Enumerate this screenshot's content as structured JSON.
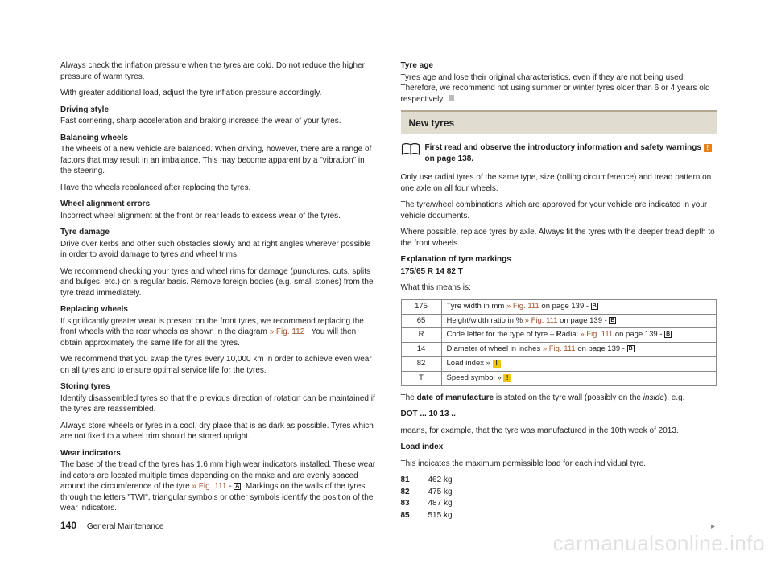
{
  "left": {
    "p1": "Always check the inflation pressure when the tyres are cold. Do not reduce the higher pressure of warm tyres.",
    "p2": "With greater additional load, adjust the tyre inflation pressure accordingly.",
    "h1": "Driving style",
    "p3": "Fast cornering, sharp acceleration and braking increase the wear of your tyres.",
    "h2": "Balancing wheels",
    "p4": "The wheels of a new vehicle are balanced. When driving, however, there are a range of factors that may result in an imbalance. This may become apparent by a \"vibration\" in the steering.",
    "p5": "Have the wheels rebalanced after replacing the tyres.",
    "h3": "Wheel alignment errors",
    "p6": "Incorrect wheel alignment at the front or rear leads to excess wear of the tyres.",
    "h4": "Tyre damage",
    "p7": "Drive over kerbs and other such obstacles slowly and at right angles wherever possible in order to avoid damage to tyres and wheel trims.",
    "p8": "We recommend checking your tyres and wheel rims for damage (punctures, cuts, splits and bulges, etc.) on a regular basis. Remove foreign bodies (e.g. small stones) from the tyre tread immediately.",
    "h5": "Replacing wheels",
    "p9a": "If significantly greater wear is present on the front tyres, we recommend replacing the front wheels with the rear wheels as shown in the diagram ",
    "p9link": "» Fig. 112",
    "p9b": " . You will then obtain approximately the same life for all the tyres.",
    "p10": "We recommend that you swap the tyres every 10,000 km in order to achieve even wear on all tyres and to ensure optimal service life for the tyres.",
    "h6": "Storing tyres",
    "p11": "Identify disassembled tyres so that the previous direction of rotation can be maintained if the tyres are reassembled.",
    "p12": "Always store wheels or tyres in a cool, dry place that is as dark as possible. Tyres which are not fixed to a wheel trim should be stored upright.",
    "h7": "Wear indicators",
    "p13a": "The base of the tread of the tyres has 1.6 mm high wear indicators installed. These wear indicators are located multiple times depending on the make and are evenly spaced around the circumference of the tyre ",
    "p13link": "» Fig. 111",
    "p13b": " - ",
    "p13box": "A",
    "p13c": ". Markings on the walls of the tyres through the letters \"TWI\", triangular symbols or other symbols identify the position of the wear indicators."
  },
  "right": {
    "h1": "Tyre age",
    "p1": "Tyres age and lose their original characteristics, even if they are not being used. Therefore, we recommend not using summer or winter tyres older than 6 or 4 years old respectively.",
    "section": "New tyres",
    "intro1": "First read and observe the introductory information and safety warnings ",
    "intro2": " on page 138.",
    "p2": "Only use radial tyres of the same type, size (rolling circumference) and tread pattern on one axle on all four wheels.",
    "p3": "The tyre/wheel combinations which are approved for your vehicle are indicated in your vehicle documents.",
    "p4": "Where possible, replace tyres by axle. Always fit the tyres with the deeper tread depth to the front wheels.",
    "h2": "Explanation of tyre markings",
    "h2b": "175/65 R 14 82 T",
    "p5": "What this means is:",
    "table": {
      "rows": [
        {
          "k": "175",
          "t": "Tyre width in mm ",
          "link": "» Fig. 111",
          "after": " on page 139 - ",
          "box": "B"
        },
        {
          "k": "65",
          "t": "Height/width ratio in % ",
          "link": "» Fig. 111",
          "after": " on page 139 - ",
          "box": "B"
        },
        {
          "k": "R",
          "t": "Code letter for the type of tyre – ",
          "bold": "R",
          "t2": "adial ",
          "link": "» Fig. 111",
          "after": " on page 139 - ",
          "box": "B"
        },
        {
          "k": "14",
          "t": "Diameter of wheel in inches ",
          "link": "» Fig. 111",
          "after": " on page 139 - ",
          "box": "B"
        },
        {
          "k": "82",
          "t": "Load index », ",
          "icon": "yellow"
        },
        {
          "k": "T",
          "t": "Speed symbol » ",
          "icon": "yellow"
        }
      ]
    },
    "p6a": "The ",
    "p6b": "date of manufacture",
    "p6c": " is stated on the tyre wall (possibly on the ",
    "p6i": "inside",
    "p6d": "). e.g.",
    "p7": "DOT ... 10 13 ..",
    "p8": "means, for example, that the tyre was manufactured in the 10th week of 2013.",
    "h3": "Load index",
    "p9": "This indicates the maximum permissible load for each individual tyre.",
    "loads": [
      {
        "k": "81",
        "v": "462 kg"
      },
      {
        "k": "82",
        "v": "475 kg"
      },
      {
        "k": "83",
        "v": "487 kg"
      },
      {
        "k": "85",
        "v": "515 kg"
      }
    ]
  },
  "footer": {
    "page": "140",
    "section": "General Maintenance"
  },
  "watermark": "carmanualsonline.info"
}
